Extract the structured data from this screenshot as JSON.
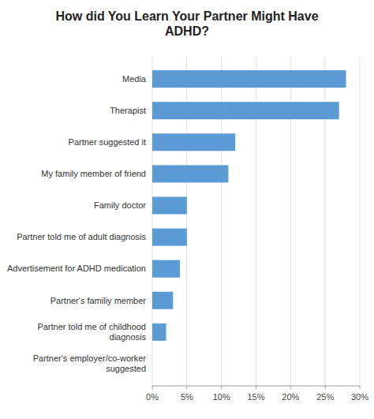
{
  "chart_data": {
    "type": "bar",
    "orientation": "horizontal",
    "title": "How did You Learn Your Partner Might Have\nADHD?",
    "categories": [
      "Partner's employer/co-worker\nsuggested",
      "Partner told me of childhood\ndiagnosis",
      "Partner's familiy member",
      "Advertisement for ADHD medication",
      "Partner told me of adult diagnosis",
      "Family doctor",
      "My family member of friend",
      "Partner suggested it",
      "Therapist",
      "Media"
    ],
    "values": [
      0,
      2,
      3,
      4,
      5,
      5,
      11,
      12,
      27,
      28
    ],
    "color": "#5b9bd5",
    "xlim": [
      0,
      30
    ],
    "xticks": [
      {
        "value": 0,
        "label": "0%"
      },
      {
        "value": 5,
        "label": "5%"
      },
      {
        "value": 10,
        "label": "10%"
      },
      {
        "value": 15,
        "label": "15%"
      },
      {
        "value": 20,
        "label": "20%"
      },
      {
        "value": 25,
        "label": "25%"
      },
      {
        "value": 30,
        "label": "30%"
      }
    ],
    "grid": true
  }
}
